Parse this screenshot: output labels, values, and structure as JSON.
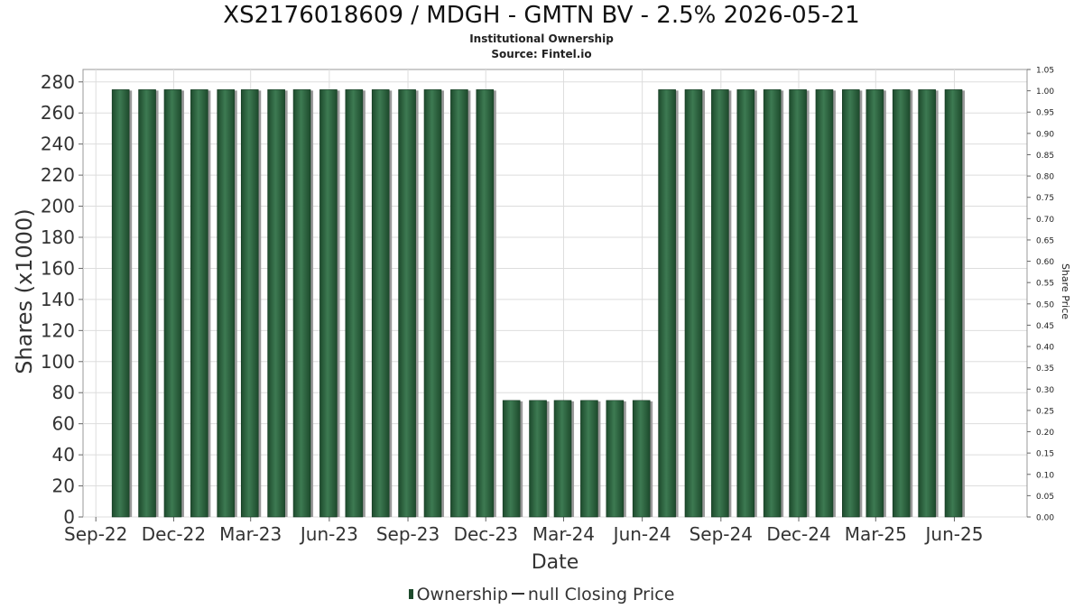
{
  "title": "XS2176018609 / MDGH - GMTN BV - 2.5% 2026-05-21",
  "subtitle": "Institutional Ownership",
  "source": "Source: Fintel.io",
  "legend": {
    "ownership": "Ownership",
    "price": "null Closing Price"
  },
  "colors": {
    "bar": "#1d4a2c",
    "bar_highlight": "#3d7a52",
    "shadow": "#9a9a9a",
    "grid": "#dddddd"
  },
  "chart_data": {
    "type": "bar",
    "title": "XS2176018609 / MDGH - GMTN BV - 2.5% 2026-05-21",
    "xlabel": "Date",
    "ylabel": "Shares (x1000)",
    "y2label": "Share Price",
    "ylim": [
      0,
      288
    ],
    "y2lim": [
      0,
      1.05
    ],
    "xlim": [
      "2022-08-17",
      "2025-08-25"
    ],
    "yticks": [
      0,
      20,
      40,
      60,
      80,
      100,
      120,
      140,
      160,
      180,
      200,
      220,
      240,
      260,
      280
    ],
    "y2ticks": [
      "0.00",
      "0.05",
      "0.10",
      "0.15",
      "0.20",
      "0.25",
      "0.30",
      "0.35",
      "0.40",
      "0.45",
      "0.50",
      "0.55",
      "0.60",
      "0.65",
      "0.70",
      "0.75",
      "0.80",
      "0.85",
      "0.90",
      "0.95",
      "1.00",
      "1.05"
    ],
    "xticks": [
      {
        "label": "Sep-22",
        "date": "2022-09-01"
      },
      {
        "label": "Dec-22",
        "date": "2022-12-01"
      },
      {
        "label": "Mar-23",
        "date": "2023-03-01"
      },
      {
        "label": "Jun-23",
        "date": "2023-06-01"
      },
      {
        "label": "Sep-23",
        "date": "2023-09-01"
      },
      {
        "label": "Dec-23",
        "date": "2023-12-01"
      },
      {
        "label": "Mar-24",
        "date": "2024-03-01"
      },
      {
        "label": "Jun-24",
        "date": "2024-06-01"
      },
      {
        "label": "Sep-24",
        "date": "2024-09-01"
      },
      {
        "label": "Dec-24",
        "date": "2024-12-01"
      },
      {
        "label": "Mar-25",
        "date": "2025-03-01"
      },
      {
        "label": "Jun-25",
        "date": "2025-06-01"
      }
    ],
    "grid": true,
    "legend_position": "bottom",
    "series": [
      {
        "name": "Ownership",
        "points": [
          {
            "x": "2022-09-30",
            "y": 275
          },
          {
            "x": "2022-10-31",
            "y": 275
          },
          {
            "x": "2022-11-30",
            "y": 275
          },
          {
            "x": "2022-12-31",
            "y": 275
          },
          {
            "x": "2023-01-31",
            "y": 275
          },
          {
            "x": "2023-02-28",
            "y": 275
          },
          {
            "x": "2023-03-31",
            "y": 275
          },
          {
            "x": "2023-04-30",
            "y": 275
          },
          {
            "x": "2023-05-31",
            "y": 275
          },
          {
            "x": "2023-06-30",
            "y": 275
          },
          {
            "x": "2023-07-31",
            "y": 275
          },
          {
            "x": "2023-08-31",
            "y": 275
          },
          {
            "x": "2023-09-30",
            "y": 275
          },
          {
            "x": "2023-10-31",
            "y": 275
          },
          {
            "x": "2023-11-30",
            "y": 275
          },
          {
            "x": "2023-12-31",
            "y": 75
          },
          {
            "x": "2024-01-31",
            "y": 75
          },
          {
            "x": "2024-02-29",
            "y": 75
          },
          {
            "x": "2024-03-31",
            "y": 75
          },
          {
            "x": "2024-04-30",
            "y": 75
          },
          {
            "x": "2024-05-31",
            "y": 75
          },
          {
            "x": "2024-06-30",
            "y": 275
          },
          {
            "x": "2024-07-31",
            "y": 275
          },
          {
            "x": "2024-08-31",
            "y": 275
          },
          {
            "x": "2024-09-30",
            "y": 275
          },
          {
            "x": "2024-10-31",
            "y": 275
          },
          {
            "x": "2024-11-30",
            "y": 275
          },
          {
            "x": "2024-12-31",
            "y": 275
          },
          {
            "x": "2025-01-31",
            "y": 275
          },
          {
            "x": "2025-02-28",
            "y": 275
          },
          {
            "x": "2025-03-31",
            "y": 275
          },
          {
            "x": "2025-04-30",
            "y": 275
          },
          {
            "x": "2025-05-31",
            "y": 275
          }
        ]
      },
      {
        "name": "null Closing Price",
        "points": []
      }
    ]
  }
}
